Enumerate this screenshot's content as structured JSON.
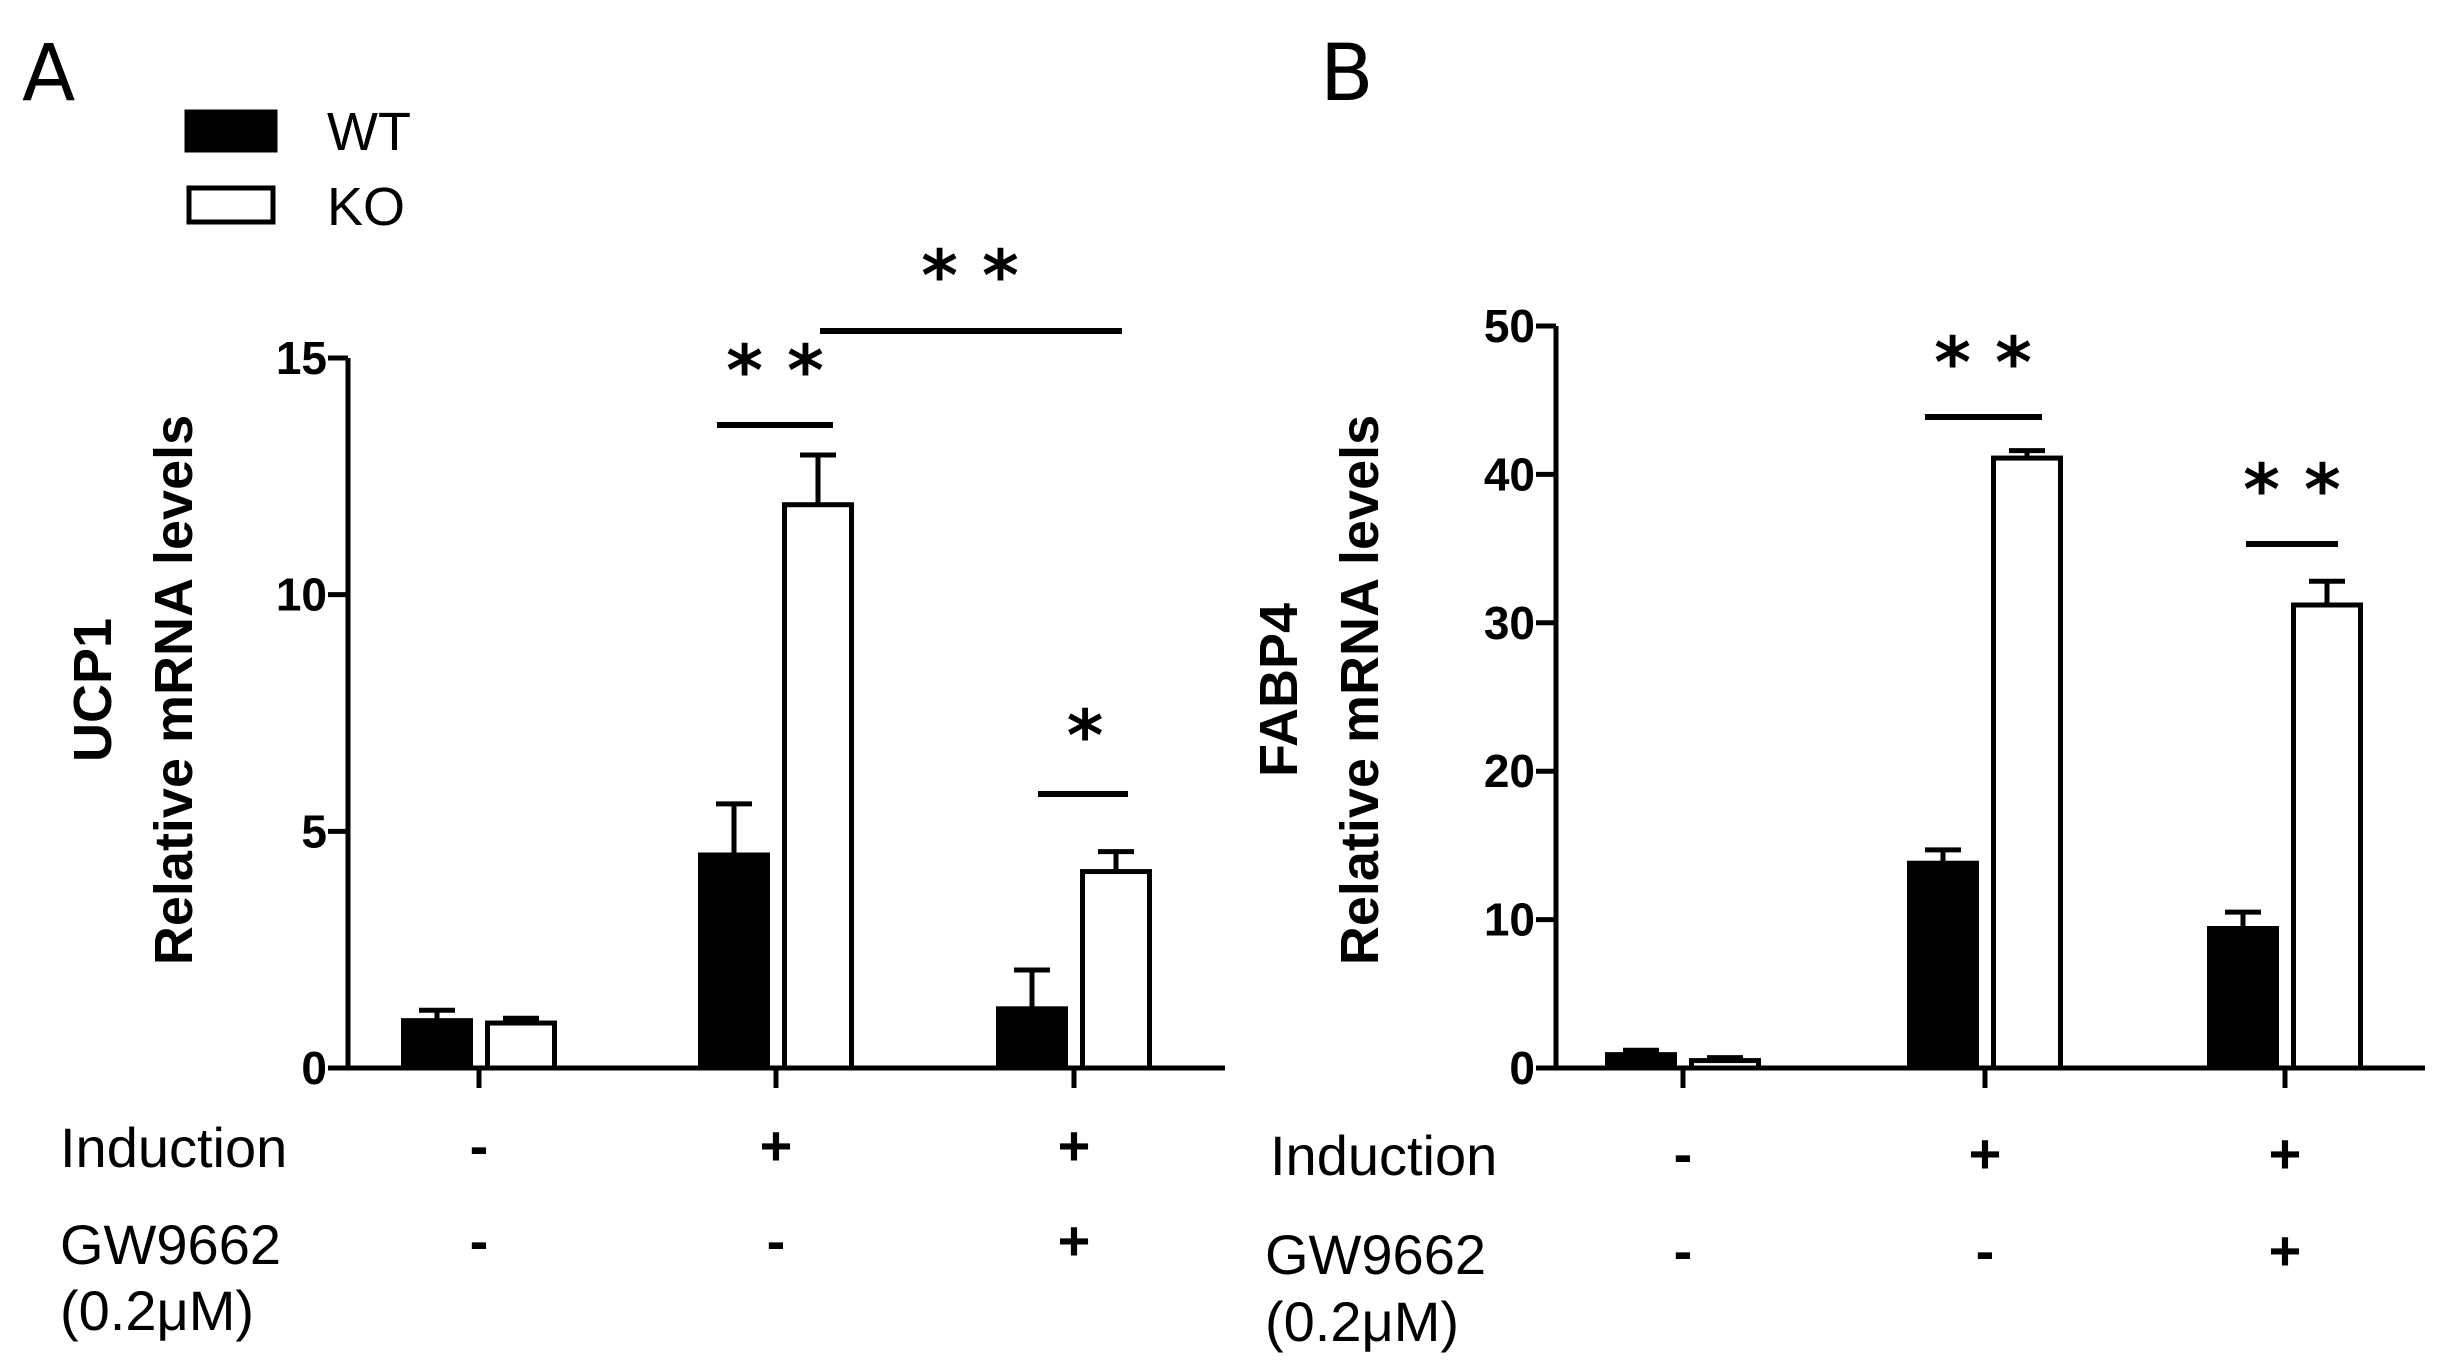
{
  "chart_data": [
    {
      "panel_label": "A",
      "type": "bar",
      "ylabel_lines": [
        "UCP1",
        "Relative mRNA levels"
      ],
      "ylim": [
        0,
        15
      ],
      "yticks": [
        0,
        5,
        10,
        15
      ],
      "ytick_labels": [
        "0",
        "5",
        "10",
        "15"
      ],
      "series": [
        {
          "name": "WT",
          "color": "#000000",
          "values": [
            1.0,
            4.5,
            1.25
          ],
          "errors": [
            0.22,
            1.08,
            0.82
          ]
        },
        {
          "name": "KO",
          "color": "#ffffff",
          "values": [
            0.95,
            11.9,
            4.15
          ],
          "errors": [
            0.1,
            1.05,
            0.42
          ]
        }
      ],
      "conditions": [
        {
          "label": "Induction",
          "values": [
            "-",
            "+",
            "+"
          ]
        },
        {
          "label_lines": [
            "GW9662",
            "(0.2μM)"
          ],
          "values": [
            "-",
            "-",
            "+"
          ]
        }
      ],
      "significance": [
        {
          "text": "* *",
          "between": "WT-KO",
          "group": 1
        },
        {
          "text": "*",
          "between": "WT-KO",
          "group": 2
        },
        {
          "text": "* *",
          "between": "KO group 2 vs KO group 3"
        }
      ]
    },
    {
      "panel_label": "B",
      "type": "bar",
      "ylabel_lines": [
        "FABP4",
        "Relative mRNA levels"
      ],
      "ylim": [
        0,
        50
      ],
      "yticks": [
        0,
        10,
        20,
        30,
        40,
        50
      ],
      "ytick_labels": [
        "0",
        "10",
        "20",
        "30",
        "40",
        "50"
      ],
      "series": [
        {
          "name": "WT",
          "color": "#000000",
          "values": [
            0.9,
            13.8,
            9.4
          ],
          "errors": [
            0.3,
            0.9,
            1.1
          ]
        },
        {
          "name": "KO",
          "color": "#ffffff",
          "values": [
            0.5,
            41.1,
            31.2
          ],
          "errors": [
            0.2,
            0.5,
            1.6
          ]
        }
      ],
      "conditions": [
        {
          "label": "Induction",
          "values": [
            "-",
            "+",
            "+"
          ]
        },
        {
          "label_lines": [
            "GW9662",
            "(0.2μM)"
          ],
          "values": [
            "-",
            "-",
            "+"
          ]
        }
      ],
      "significance": [
        {
          "text": "* *",
          "between": "WT-KO",
          "group": 1
        },
        {
          "text": "* *",
          "between": "WT-KO",
          "group": 2
        }
      ]
    }
  ],
  "legend": {
    "placement": "top-left",
    "items": [
      {
        "label": "WT",
        "fill": "#000000"
      },
      {
        "label": "KO",
        "fill": "#ffffff"
      }
    ]
  }
}
